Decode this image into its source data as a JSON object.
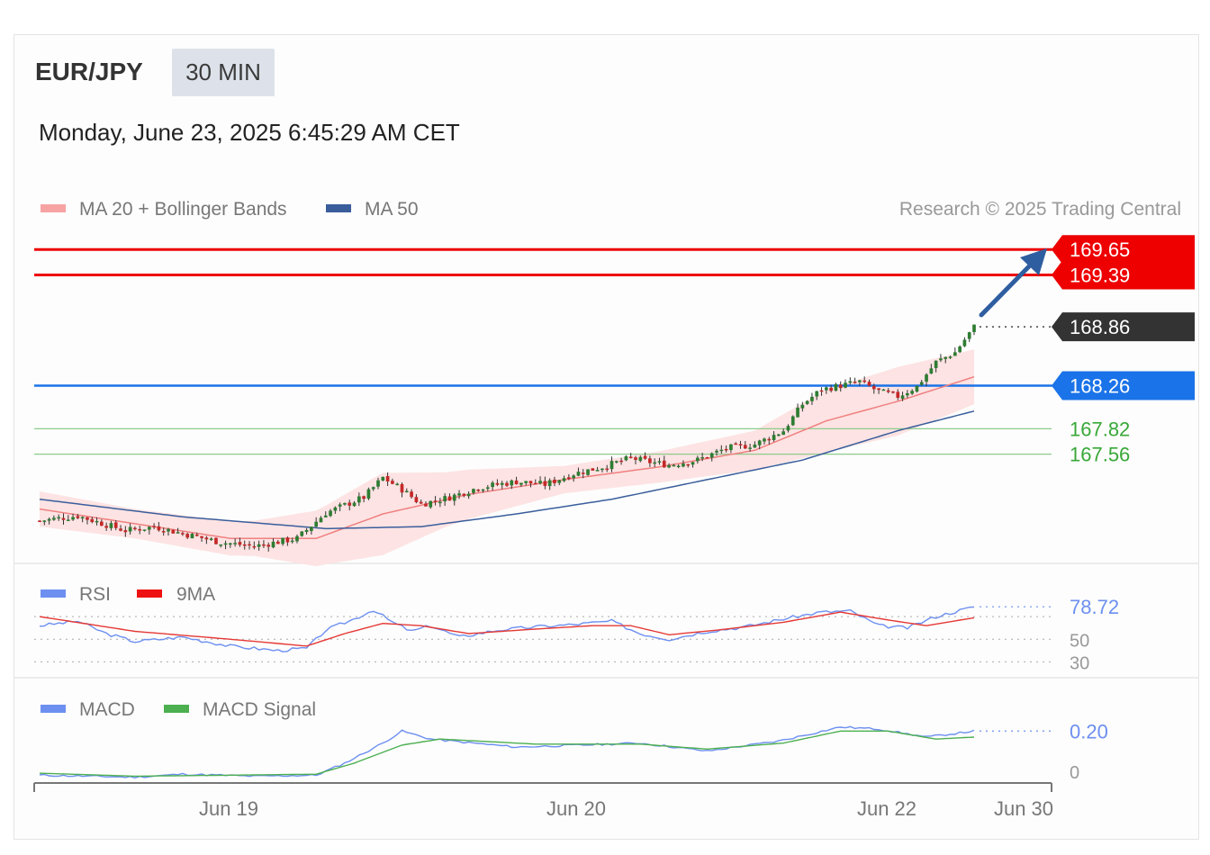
{
  "header": {
    "symbol": "EUR/JPY",
    "timeframe": "30 MIN",
    "datetime": "Monday, June 23, 2025 6:45:29 AM CET"
  },
  "legend": {
    "ma20_label": "MA 20 + Bollinger Bands",
    "ma50_label": "MA 50",
    "credit": "Research © 2025 Trading Central"
  },
  "colors": {
    "resistance": "#ee0000",
    "support_blue": "#1a73e8",
    "support_green": "#38a838",
    "last_price_tag": "#333333",
    "ma20": "#f08080",
    "ma50": "#3a5e9c",
    "bollinger_fill": "#fde3e3",
    "candle_up": "#2e7d32",
    "candle_down": "#c62828",
    "rsi": "#6d8ff0",
    "rsi_9ma": "#e53935",
    "macd": "#6d8ff0",
    "macd_signal": "#4caf50"
  },
  "chart_data": [
    {
      "type": "candlestick",
      "name": "price",
      "ylim": [
        166.5,
        169.9
      ],
      "levels": [
        {
          "value": 169.65,
          "label": "169.65",
          "kind": "resistance"
        },
        {
          "value": 169.39,
          "label": "169.39",
          "kind": "resistance"
        },
        {
          "value": 168.86,
          "label": "168.86",
          "kind": "last"
        },
        {
          "value": 168.26,
          "label": "168.26",
          "kind": "support"
        },
        {
          "value": 167.82,
          "label": "167.82",
          "kind": "support-minor"
        },
        {
          "value": 167.56,
          "label": "167.56",
          "kind": "support-minor"
        }
      ],
      "x_ticks": [
        "Jun 19",
        "Jun 20",
        "Jun 22",
        "Jun 30"
      ],
      "close_anchors": [
        [
          0,
          166.88
        ],
        [
          8,
          166.93
        ],
        [
          18,
          166.78
        ],
        [
          24,
          166.82
        ],
        [
          30,
          166.75
        ],
        [
          38,
          166.66
        ],
        [
          45,
          166.62
        ],
        [
          54,
          166.7
        ],
        [
          60,
          166.96
        ],
        [
          68,
          167.12
        ],
        [
          72,
          167.32
        ],
        [
          76,
          167.2
        ],
        [
          80,
          167.05
        ],
        [
          86,
          167.12
        ],
        [
          92,
          167.22
        ],
        [
          100,
          167.28
        ],
        [
          106,
          167.25
        ],
        [
          112,
          167.36
        ],
        [
          118,
          167.43
        ],
        [
          124,
          167.52
        ],
        [
          128,
          167.48
        ],
        [
          132,
          167.45
        ],
        [
          138,
          167.5
        ],
        [
          144,
          167.62
        ],
        [
          150,
          167.66
        ],
        [
          156,
          167.8
        ],
        [
          160,
          168.07
        ],
        [
          164,
          168.22
        ],
        [
          172,
          168.3
        ],
        [
          176,
          168.2
        ],
        [
          180,
          168.15
        ],
        [
          184,
          168.25
        ],
        [
          188,
          168.5
        ],
        [
          192,
          168.6
        ],
        [
          196,
          168.86
        ]
      ],
      "ma20_anchors": [
        [
          0,
          167.0
        ],
        [
          20,
          166.85
        ],
        [
          40,
          166.7
        ],
        [
          58,
          166.7
        ],
        [
          72,
          166.95
        ],
        [
          90,
          167.15
        ],
        [
          110,
          167.3
        ],
        [
          130,
          167.43
        ],
        [
          150,
          167.6
        ],
        [
          165,
          167.9
        ],
        [
          180,
          168.1
        ],
        [
          196,
          168.35
        ]
      ],
      "ma50_anchors": [
        [
          0,
          167.1
        ],
        [
          30,
          166.92
        ],
        [
          60,
          166.8
        ],
        [
          80,
          166.82
        ],
        [
          100,
          166.95
        ],
        [
          120,
          167.1
        ],
        [
          140,
          167.3
        ],
        [
          160,
          167.5
        ],
        [
          180,
          167.8
        ],
        [
          196,
          168.0
        ]
      ],
      "bb_width_anchors": [
        [
          0,
          0.18
        ],
        [
          20,
          0.15
        ],
        [
          45,
          0.18
        ],
        [
          60,
          0.3
        ],
        [
          72,
          0.42
        ],
        [
          85,
          0.28
        ],
        [
          110,
          0.14
        ],
        [
          130,
          0.16
        ],
        [
          150,
          0.2
        ],
        [
          165,
          0.32
        ],
        [
          180,
          0.35
        ],
        [
          196,
          0.28
        ]
      ]
    },
    {
      "type": "line",
      "name": "rsi",
      "series": [
        {
          "name": "RSI",
          "legend": "RSI"
        },
        {
          "name": "9MA",
          "legend": "9MA"
        }
      ],
      "last_value": 78.72,
      "last_label": "78.72",
      "ticks": [
        "50",
        "30"
      ],
      "rsi_anchors": [
        [
          0,
          62
        ],
        [
          8,
          66
        ],
        [
          14,
          55
        ],
        [
          20,
          48
        ],
        [
          30,
          52
        ],
        [
          40,
          44
        ],
        [
          50,
          40
        ],
        [
          56,
          42
        ],
        [
          60,
          58
        ],
        [
          66,
          68
        ],
        [
          70,
          76
        ],
        [
          74,
          65
        ],
        [
          78,
          57
        ],
        [
          82,
          62
        ],
        [
          88,
          52
        ],
        [
          96,
          58
        ],
        [
          104,
          61
        ],
        [
          112,
          63
        ],
        [
          120,
          66
        ],
        [
          126,
          55
        ],
        [
          132,
          50
        ],
        [
          140,
          57
        ],
        [
          148,
          61
        ],
        [
          156,
          68
        ],
        [
          164,
          74
        ],
        [
          170,
          75
        ],
        [
          176,
          62
        ],
        [
          182,
          60
        ],
        [
          188,
          70
        ],
        [
          196,
          78.72
        ]
      ],
      "ma_anchors": [
        [
          0,
          70
        ],
        [
          20,
          57
        ],
        [
          40,
          50
        ],
        [
          56,
          44
        ],
        [
          64,
          55
        ],
        [
          72,
          64
        ],
        [
          80,
          62
        ],
        [
          90,
          55
        ],
        [
          104,
          59
        ],
        [
          116,
          62
        ],
        [
          124,
          62
        ],
        [
          132,
          54
        ],
        [
          142,
          58
        ],
        [
          156,
          65
        ],
        [
          168,
          74
        ],
        [
          178,
          67
        ],
        [
          186,
          62
        ],
        [
          196,
          69
        ]
      ]
    },
    {
      "type": "line",
      "name": "macd",
      "series": [
        {
          "name": "MACD",
          "legend": "MACD"
        },
        {
          "name": "MACD Signal",
          "legend": "MACD Signal"
        }
      ],
      "last_value": 0.2,
      "last_label": "0.20",
      "ticks": [
        "0"
      ],
      "ylim": [
        -0.05,
        0.3
      ],
      "macd_anchors": [
        [
          0,
          -0.02
        ],
        [
          20,
          -0.03
        ],
        [
          30,
          -0.015
        ],
        [
          45,
          -0.025
        ],
        [
          58,
          -0.02
        ],
        [
          64,
          0.04
        ],
        [
          72,
          0.14
        ],
        [
          76,
          0.2
        ],
        [
          82,
          0.16
        ],
        [
          100,
          0.12
        ],
        [
          126,
          0.14
        ],
        [
          140,
          0.1
        ],
        [
          155,
          0.15
        ],
        [
          168,
          0.22
        ],
        [
          176,
          0.21
        ],
        [
          186,
          0.17
        ],
        [
          196,
          0.2
        ]
      ],
      "signal_anchors": [
        [
          0,
          -0.01
        ],
        [
          20,
          -0.025
        ],
        [
          40,
          -0.02
        ],
        [
          58,
          -0.015
        ],
        [
          66,
          0.04
        ],
        [
          76,
          0.13
        ],
        [
          84,
          0.16
        ],
        [
          104,
          0.135
        ],
        [
          126,
          0.135
        ],
        [
          140,
          0.11
        ],
        [
          156,
          0.14
        ],
        [
          168,
          0.2
        ],
        [
          178,
          0.2
        ],
        [
          188,
          0.16
        ],
        [
          196,
          0.17
        ]
      ]
    }
  ]
}
